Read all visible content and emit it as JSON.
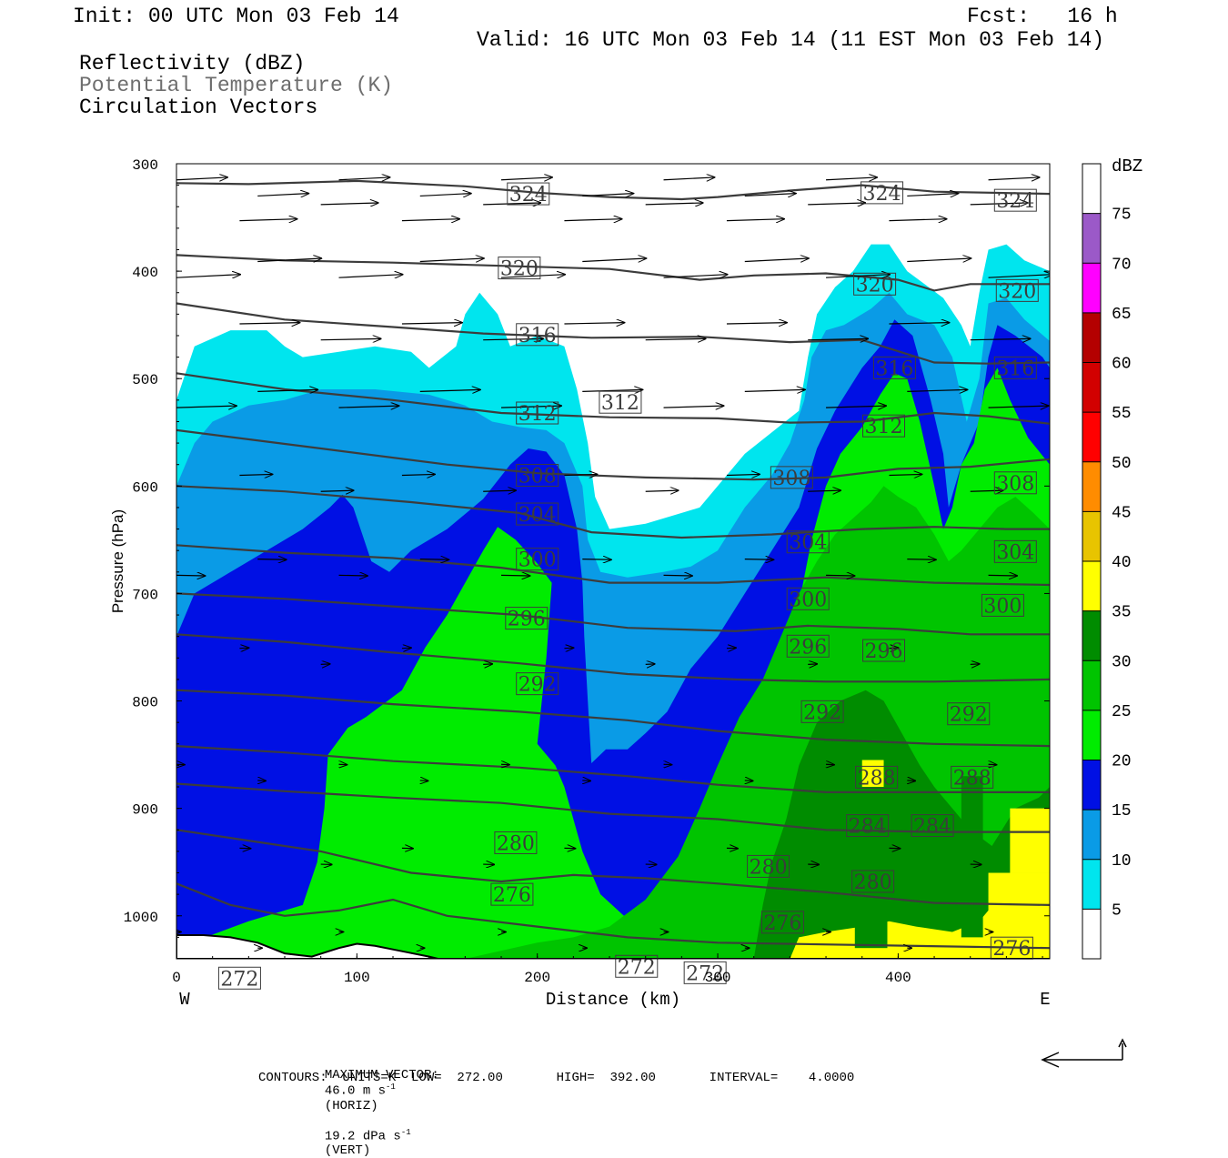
{
  "header": {
    "init": "Init: 00 UTC Mon 03 Feb 14",
    "fcst": "Fcst:   16 h",
    "valid": "Valid: 16 UTC Mon 03 Feb 14 (11 EST Mon 03 Feb 14)",
    "field1": "Reflectivity (dBZ)",
    "field2": "Potential Temperature (K)",
    "field3": "Circulation Vectors",
    "field2_color": "#6e6e6e"
  },
  "chart_data": {
    "type": "heatmap",
    "xlabel": "Distance (km)",
    "ylabel": "Pressure (hPa)",
    "xlim": [
      0,
      484
    ],
    "ylim": [
      1040,
      300
    ],
    "x_ticks": [
      0,
      100,
      200,
      300,
      400
    ],
    "y_ticks": [
      300,
      400,
      500,
      600,
      700,
      800,
      900,
      1000
    ],
    "x_end_labels": {
      "left": "W",
      "right": "E"
    },
    "colorbar": {
      "title": "dBZ",
      "levels": [
        5,
        10,
        15,
        20,
        25,
        30,
        35,
        40,
        45,
        50,
        55,
        60,
        65,
        70,
        75
      ],
      "colors": [
        "#ffffff",
        "#00e5ee",
        "#0a9be6",
        "#0010e4",
        "#00ec00",
        "#00c400",
        "#008c00",
        "#ffff00",
        "#e8c400",
        "#ff8c00",
        "#ff0000",
        "#d20000",
        "#b40000",
        "#ff00ff",
        "#9b59c8",
        "#ffffff"
      ]
    },
    "theta_contours": [
      {
        "label": "324",
        "pts": [
          [
            0,
            318
          ],
          [
            40,
            319
          ],
          [
            100,
            316
          ],
          [
            160,
            321
          ],
          [
            200,
            327
          ],
          [
            240,
            331
          ],
          [
            280,
            333
          ],
          [
            300,
            331
          ],
          [
            340,
            325
          ],
          [
            380,
            320
          ],
          [
            420,
            326
          ],
          [
            484,
            328
          ]
        ]
      },
      {
        "label": "320",
        "pts": [
          [
            0,
            385
          ],
          [
            60,
            390
          ],
          [
            120,
            392
          ],
          [
            180,
            395
          ],
          [
            240,
            398
          ],
          [
            290,
            408
          ],
          [
            320,
            404
          ],
          [
            360,
            402
          ],
          [
            400,
            408
          ],
          [
            420,
            418
          ],
          [
            440,
            412
          ],
          [
            484,
            412
          ]
        ]
      },
      {
        "label": "316",
        "pts": [
          [
            0,
            430
          ],
          [
            60,
            445
          ],
          [
            120,
            452
          ],
          [
            170,
            458
          ],
          [
            230,
            462
          ],
          [
            290,
            461
          ],
          [
            340,
            466
          ],
          [
            380,
            464
          ],
          [
            420,
            485
          ],
          [
            450,
            486
          ],
          [
            484,
            485
          ]
        ]
      },
      {
        "label": "312",
        "pts": [
          [
            0,
            495
          ],
          [
            60,
            510
          ],
          [
            120,
            520
          ],
          [
            180,
            532
          ],
          [
            240,
            536
          ],
          [
            300,
            537
          ],
          [
            340,
            541
          ],
          [
            380,
            540
          ],
          [
            420,
            532
          ],
          [
            450,
            535
          ],
          [
            484,
            542
          ]
        ]
      },
      {
        "label": "308",
        "pts": [
          [
            0,
            548
          ],
          [
            80,
            565
          ],
          [
            150,
            580
          ],
          [
            200,
            588
          ],
          [
            260,
            592
          ],
          [
            320,
            594
          ],
          [
            360,
            592
          ],
          [
            400,
            584
          ],
          [
            440,
            582
          ],
          [
            484,
            575
          ]
        ]
      },
      {
        "label": "304",
        "pts": [
          [
            0,
            600
          ],
          [
            60,
            605
          ],
          [
            130,
            615
          ],
          [
            190,
            625
          ],
          [
            230,
            643
          ],
          [
            280,
            648
          ],
          [
            330,
            645
          ],
          [
            380,
            640
          ],
          [
            420,
            638
          ],
          [
            460,
            640
          ],
          [
            484,
            640
          ]
        ]
      },
      {
        "label": "300",
        "pts": [
          [
            0,
            655
          ],
          [
            60,
            662
          ],
          [
            120,
            667
          ],
          [
            180,
            676
          ],
          [
            240,
            690
          ],
          [
            300,
            690
          ],
          [
            360,
            685
          ],
          [
            420,
            690
          ],
          [
            484,
            692
          ]
        ]
      },
      {
        "label": "296",
        "pts": [
          [
            0,
            700
          ],
          [
            60,
            705
          ],
          [
            120,
            712
          ],
          [
            190,
            720
          ],
          [
            250,
            732
          ],
          [
            310,
            735
          ],
          [
            350,
            730
          ],
          [
            400,
            733
          ],
          [
            440,
            738
          ],
          [
            484,
            738
          ]
        ]
      },
      {
        "label": "292",
        "pts": [
          [
            0,
            738
          ],
          [
            60,
            745
          ],
          [
            120,
            755
          ],
          [
            190,
            765
          ],
          [
            250,
            775
          ],
          [
            310,
            780
          ],
          [
            360,
            782
          ],
          [
            420,
            782
          ],
          [
            484,
            780
          ]
        ]
      },
      {
        "label": "288",
        "pts": [
          [
            0,
            790
          ],
          [
            60,
            795
          ],
          [
            120,
            803
          ],
          [
            190,
            810
          ],
          [
            250,
            818
          ],
          [
            300,
            828
          ],
          [
            360,
            836
          ],
          [
            420,
            840
          ],
          [
            484,
            842
          ]
        ]
      },
      {
        "label": "284",
        "pts": [
          [
            0,
            842
          ],
          [
            60,
            848
          ],
          [
            120,
            856
          ],
          [
            190,
            862
          ],
          [
            250,
            870
          ],
          [
            300,
            878
          ],
          [
            360,
            885
          ],
          [
            420,
            885
          ],
          [
            484,
            885
          ]
        ]
      },
      {
        "label": "280",
        "pts": [
          [
            0,
            877
          ],
          [
            60,
            884
          ],
          [
            120,
            890
          ],
          [
            180,
            895
          ],
          [
            240,
            905
          ],
          [
            300,
            910
          ],
          [
            360,
            920
          ],
          [
            420,
            922
          ],
          [
            484,
            922
          ]
        ]
      },
      {
        "label": "276",
        "pts": [
          [
            0,
            920
          ],
          [
            40,
            930
          ],
          [
            80,
            940
          ],
          [
            130,
            960
          ],
          [
            180,
            968
          ],
          [
            220,
            962
          ],
          [
            260,
            965
          ],
          [
            300,
            970
          ],
          [
            360,
            978
          ],
          [
            420,
            988
          ],
          [
            484,
            990
          ]
        ]
      },
      {
        "label": "272",
        "pts": [
          [
            0,
            970
          ],
          [
            30,
            990
          ],
          [
            60,
            1000
          ],
          [
            90,
            995
          ],
          [
            120,
            985
          ],
          [
            150,
            1000
          ],
          [
            200,
            1010
          ],
          [
            250,
            1020
          ],
          [
            300,
            1025
          ],
          [
            484,
            1030
          ]
        ]
      }
    ],
    "contour_labels": [
      {
        "text": "324",
        "x": 195,
        "p": 328
      },
      {
        "text": "324",
        "x": 391,
        "p": 327
      },
      {
        "text": "324",
        "x": 465,
        "p": 334
      },
      {
        "text": "320",
        "x": 190,
        "p": 397
      },
      {
        "text": "320",
        "x": 387,
        "p": 412
      },
      {
        "text": "320",
        "x": 466,
        "p": 418
      },
      {
        "text": "316",
        "x": 200,
        "p": 459
      },
      {
        "text": "316",
        "x": 398,
        "p": 490
      },
      {
        "text": "316",
        "x": 465,
        "p": 490
      },
      {
        "text": "312",
        "x": 200,
        "p": 532
      },
      {
        "text": "312",
        "x": 246,
        "p": 522
      },
      {
        "text": "312",
        "x": 392,
        "p": 544
      },
      {
        "text": "308",
        "x": 200,
        "p": 590
      },
      {
        "text": "308",
        "x": 341,
        "p": 592
      },
      {
        "text": "308",
        "x": 465,
        "p": 597
      },
      {
        "text": "304",
        "x": 200,
        "p": 626
      },
      {
        "text": "304",
        "x": 350,
        "p": 652
      },
      {
        "text": "304",
        "x": 465,
        "p": 661
      },
      {
        "text": "300",
        "x": 200,
        "p": 668
      },
      {
        "text": "300",
        "x": 350,
        "p": 705
      },
      {
        "text": "300",
        "x": 458,
        "p": 711
      },
      {
        "text": "296",
        "x": 194,
        "p": 723
      },
      {
        "text": "296",
        "x": 350,
        "p": 749
      },
      {
        "text": "296",
        "x": 392,
        "p": 753
      },
      {
        "text": "292",
        "x": 200,
        "p": 784
      },
      {
        "text": "292",
        "x": 358,
        "p": 810
      },
      {
        "text": "292",
        "x": 439,
        "p": 812
      },
      {
        "text": "288",
        "x": 388,
        "p": 871
      },
      {
        "text": "288",
        "x": 441,
        "p": 871
      },
      {
        "text": "284",
        "x": 383,
        "p": 916
      },
      {
        "text": "284",
        "x": 419,
        "p": 916
      },
      {
        "text": "280",
        "x": 188,
        "p": 932
      },
      {
        "text": "280",
        "x": 328,
        "p": 954
      },
      {
        "text": "280",
        "x": 386,
        "p": 968
      },
      {
        "text": "276",
        "x": 186,
        "p": 980
      },
      {
        "text": "276",
        "x": 336,
        "p": 1006
      },
      {
        "text": "276",
        "x": 463,
        "p": 1030
      },
      {
        "text": "272",
        "x": 35,
        "p": 1058
      },
      {
        "text": "272",
        "x": 255,
        "p": 1047
      },
      {
        "text": "272",
        "x": 293,
        "p": 1053
      }
    ]
  },
  "footer": {
    "max_vector_label": "MAXIMUM VECTOR:",
    "max_vector_h": "46.0 m s",
    "max_vector_h_exp": "-1",
    "max_vector_h_tag": "(HORIZ)",
    "max_vector_v": "19.2 dPa s",
    "max_vector_v_exp": "-1",
    "max_vector_v_tag": "(VERT)",
    "contours": "CONTOURS:  UNITS=K  LOW=  272.00       HIGH=  392.00       INTERVAL=    4.0000"
  }
}
